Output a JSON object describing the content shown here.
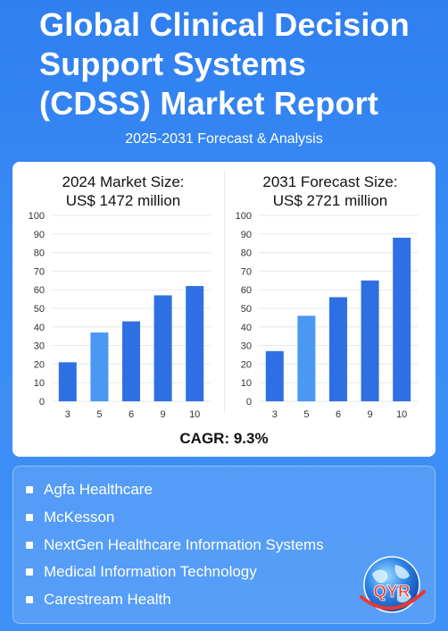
{
  "header": {
    "title_line1": "Global Clinical Decision",
    "title_line2": "Support Systems",
    "title_line3": "(CDSS) Market Report",
    "subtitle": "2025-2031 Forecast & Analysis"
  },
  "charts": {
    "left_title_line1": "2024 Market Size:",
    "left_title_line2": "US$ 1472 million",
    "right_title_line1": "2031 Forecast Size:",
    "right_title_line2": "US$ 2721 million",
    "cagr": "CAGR: 9.3%"
  },
  "chart_data": [
    {
      "type": "bar",
      "categories": [
        "3",
        "5",
        "6",
        "9",
        "10"
      ],
      "values": [
        21,
        37,
        43,
        57,
        62
      ],
      "ylim": [
        0,
        100
      ],
      "yticks": [
        0,
        10,
        20,
        30,
        40,
        50,
        60,
        70,
        80,
        90,
        100
      ],
      "grid": true,
      "colors": [
        "#2f6fe4",
        "#4a98f2",
        "#2f6fe4",
        "#2f6fe4",
        "#2f6fe4"
      ]
    },
    {
      "type": "bar",
      "categories": [
        "3",
        "5",
        "6",
        "9",
        "10"
      ],
      "values": [
        27,
        46,
        56,
        65,
        88
      ],
      "ylim": [
        0,
        100
      ],
      "yticks": [
        0,
        10,
        20,
        30,
        40,
        50,
        60,
        70,
        80,
        90,
        100
      ],
      "grid": true,
      "colors": [
        "#2f6fe4",
        "#4a98f2",
        "#2f6fe4",
        "#2f6fe4",
        "#2f6fe4"
      ]
    }
  ],
  "companies": [
    "Agfa Healthcare",
    "McKesson",
    "NextGen Healthcare Information Systems",
    "Medical Information Technology",
    "Carestream Health"
  ],
  "logo": {
    "text": "QYR",
    "icon": "globe-icon"
  }
}
